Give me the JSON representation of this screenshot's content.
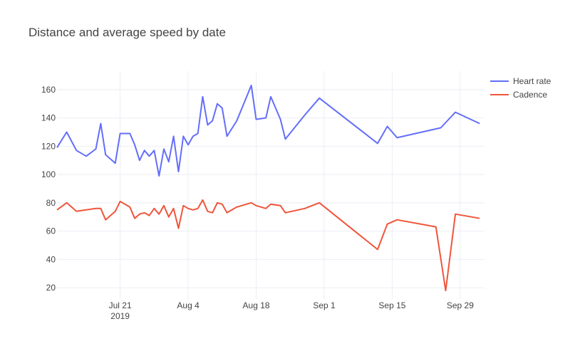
{
  "chart_data": {
    "type": "line",
    "title": "Distance and average speed by date",
    "xlabel": "",
    "ylabel": "",
    "x_range": [
      "2019-07-08",
      "2019-10-04"
    ],
    "ylim": [
      12,
      173
    ],
    "grid": true,
    "legend_position": "top-right",
    "y_ticks": [
      20,
      40,
      60,
      80,
      100,
      120,
      140,
      160
    ],
    "x_ticks": [
      {
        "date": "2019-07-21",
        "label": "Jul 21",
        "sublabel": "2019"
      },
      {
        "date": "2019-08-04",
        "label": "Aug 4",
        "sublabel": ""
      },
      {
        "date": "2019-08-18",
        "label": "Aug 18",
        "sublabel": ""
      },
      {
        "date": "2019-09-01",
        "label": "Sep 1",
        "sublabel": ""
      },
      {
        "date": "2019-09-15",
        "label": "Sep 15",
        "sublabel": ""
      },
      {
        "date": "2019-09-29",
        "label": "Sep 29",
        "sublabel": ""
      }
    ],
    "series": [
      {
        "name": "Heart rate",
        "color": "#636efa",
        "points": [
          [
            "2019-07-08 00:00",
            119
          ],
          [
            "2019-07-10 00:00",
            130
          ],
          [
            "2019-07-12 00:00",
            117
          ],
          [
            "2019-07-14 00:00",
            113
          ],
          [
            "2019-07-16 00:00",
            118
          ],
          [
            "2019-07-17 00:00",
            136
          ],
          [
            "2019-07-18 00:00",
            114
          ],
          [
            "2019-07-20 00:00",
            108
          ],
          [
            "2019-07-21 00:00",
            129
          ],
          [
            "2019-07-23 00:00",
            129
          ],
          [
            "2019-07-24 00:00",
            121
          ],
          [
            "2019-07-25 00:00",
            110
          ],
          [
            "2019-07-26 00:00",
            117
          ],
          [
            "2019-07-27 00:00",
            113
          ],
          [
            "2019-07-28 00:00",
            117
          ],
          [
            "2019-07-29 00:00",
            99
          ],
          [
            "2019-07-30 00:00",
            118
          ],
          [
            "2019-07-31 00:00",
            109
          ],
          [
            "2019-08-01 00:00",
            127
          ],
          [
            "2019-08-02 00:00",
            102
          ],
          [
            "2019-08-03 00:00",
            127
          ],
          [
            "2019-08-04 00:00",
            121
          ],
          [
            "2019-08-05 00:00",
            127
          ],
          [
            "2019-08-06 00:00",
            129
          ],
          [
            "2019-08-07 00:00",
            155
          ],
          [
            "2019-08-08 00:00",
            135
          ],
          [
            "2019-08-09 00:00",
            138
          ],
          [
            "2019-08-10 00:00",
            150
          ],
          [
            "2019-08-11 00:00",
            147
          ],
          [
            "2019-08-12 00:00",
            127
          ],
          [
            "2019-08-14 00:00",
            138
          ],
          [
            "2019-08-17 00:00",
            163
          ],
          [
            "2019-08-18 00:00",
            139
          ],
          [
            "2019-08-20 00:00",
            140
          ],
          [
            "2019-08-21 00:00",
            155
          ],
          [
            "2019-08-23 00:00",
            139
          ],
          [
            "2019-08-24 00:00",
            125
          ],
          [
            "2019-08-28 00:00",
            142
          ],
          [
            "2019-09-00 00:00",
            154
          ],
          [
            "2019-09-12 00:00",
            122
          ],
          [
            "2019-09-14 00:00",
            134
          ],
          [
            "2019-09-16 00:00",
            126
          ],
          [
            "2019-09-25 00:00",
            133
          ],
          [
            "2019-09-28 00:00",
            144
          ],
          [
            "2019-10-03 00:00",
            136
          ]
        ]
      },
      {
        "name": "Cadence",
        "color": "#ef553b",
        "points": [
          [
            "2019-07-08 00:00",
            75
          ],
          [
            "2019-07-10 00:00",
            80
          ],
          [
            "2019-07-12 00:00",
            74
          ],
          [
            "2019-07-14 00:00",
            75
          ],
          [
            "2019-07-16 00:00",
            76
          ],
          [
            "2019-07-17 00:00",
            76
          ],
          [
            "2019-07-18 00:00",
            68
          ],
          [
            "2019-07-20 00:00",
            74
          ],
          [
            "2019-07-21 00:00",
            81
          ],
          [
            "2019-07-23 00:00",
            77
          ],
          [
            "2019-07-24 00:00",
            69
          ],
          [
            "2019-07-25 00:00",
            72
          ],
          [
            "2019-07-26 00:00",
            73
          ],
          [
            "2019-07-27 00:00",
            71
          ],
          [
            "2019-07-28 00:00",
            76
          ],
          [
            "2019-07-29 00:00",
            72
          ],
          [
            "2019-07-30 00:00",
            78
          ],
          [
            "2019-07-31 00:00",
            70
          ],
          [
            "2019-08-01 00:00",
            76
          ],
          [
            "2019-08-02 00:00",
            62
          ],
          [
            "2019-08-03 00:00",
            78
          ],
          [
            "2019-08-04 00:00",
            76
          ],
          [
            "2019-08-05 00:00",
            75
          ],
          [
            "2019-08-06 00:00",
            76
          ],
          [
            "2019-08-07 00:00",
            82
          ],
          [
            "2019-08-08 00:00",
            74
          ],
          [
            "2019-08-09 00:00",
            73
          ],
          [
            "2019-08-10 00:00",
            80
          ],
          [
            "2019-08-11 00:00",
            79
          ],
          [
            "2019-08-12 00:00",
            73
          ],
          [
            "2019-08-14 00:00",
            77
          ],
          [
            "2019-08-17 00:00",
            80
          ],
          [
            "2019-08-18 00:00",
            78
          ],
          [
            "2019-08-20 00:00",
            76
          ],
          [
            "2019-08-21 00:00",
            79
          ],
          [
            "2019-08-23 00:00",
            78
          ],
          [
            "2019-08-24 00:00",
            73
          ],
          [
            "2019-08-28 00:00",
            76
          ],
          [
            "2019-09-00 00:00",
            80
          ],
          [
            "2019-09-12 00:00",
            47
          ],
          [
            "2019-09-14 00:00",
            65
          ],
          [
            "2019-09-16 00:00",
            68
          ],
          [
            "2019-09-24 00:00",
            63
          ],
          [
            "2019-09-26 00:00",
            18
          ],
          [
            "2019-09-28 00:00",
            72
          ],
          [
            "2019-10-03 00:00",
            69
          ]
        ]
      }
    ]
  }
}
